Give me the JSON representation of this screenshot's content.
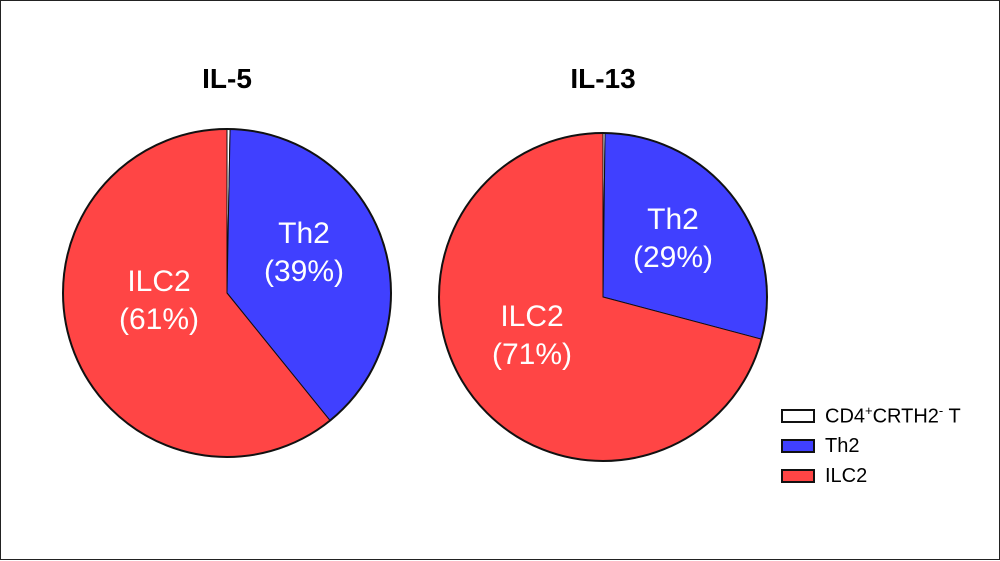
{
  "chart_data": [
    {
      "type": "pie",
      "title": "IL-5",
      "slices": [
        {
          "name": "CD4+CRTH2- T",
          "value": 0.3,
          "color": "#ffffff",
          "label_name": "",
          "label_pct": ""
        },
        {
          "name": "Th2",
          "value": 39,
          "color": "#4040ff",
          "label_name": "Th2",
          "label_pct": "(39%)"
        },
        {
          "name": "ILC2",
          "value": 61,
          "color": "#ff4545",
          "label_name": "ILC2",
          "label_pct": "(61%)"
        }
      ]
    },
    {
      "type": "pie",
      "title": "IL-13",
      "slices": [
        {
          "name": "CD4+CRTH2- T",
          "value": 0.2,
          "color": "#ffffff",
          "label_name": "",
          "label_pct": ""
        },
        {
          "name": "Th2",
          "value": 29,
          "color": "#4040ff",
          "label_name": "Th2",
          "label_pct": "(29%)"
        },
        {
          "name": "ILC2",
          "value": 71,
          "color": "#ff4545",
          "label_name": "ILC2",
          "label_pct": "(71%)"
        }
      ]
    }
  ],
  "legend": {
    "placement": "bottom-right",
    "items": [
      {
        "base": "CD4",
        "sup1": "+",
        "mid": "CRTH2",
        "sup2": "-",
        "tail": " T",
        "color": "#ffffff"
      },
      {
        "text": "Th2",
        "color": "#4040ff"
      },
      {
        "text": "ILC2",
        "color": "#ff4545"
      }
    ]
  }
}
